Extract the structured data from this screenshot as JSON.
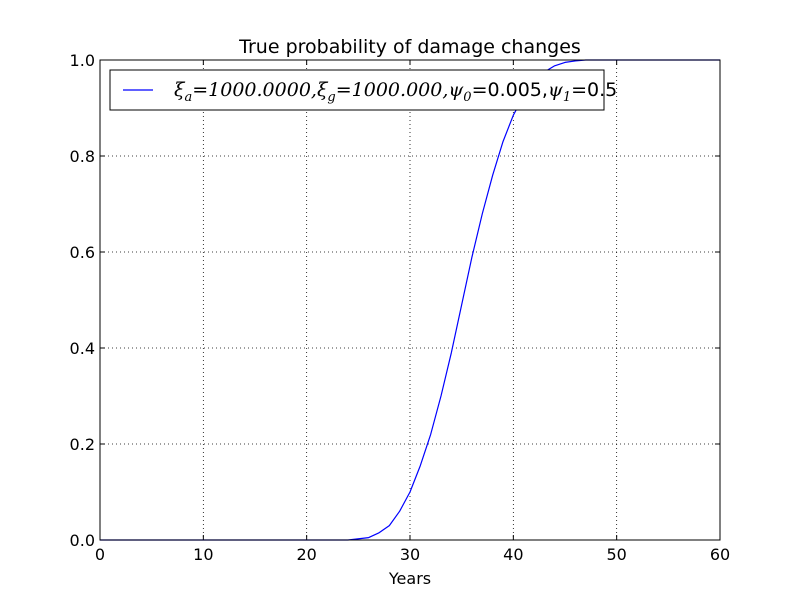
{
  "chart_data": {
    "type": "line",
    "title": "True probability of damage changes",
    "xlabel": "Years",
    "ylabel": "",
    "xlim": [
      0,
      60
    ],
    "ylim": [
      0,
      1
    ],
    "xticks": [
      0,
      10,
      20,
      30,
      40,
      50,
      60
    ],
    "yticks": [
      0.0,
      0.2,
      0.4,
      0.6,
      0.8,
      1.0
    ],
    "xtick_labels": [
      "0",
      "10",
      "20",
      "30",
      "40",
      "50",
      "60"
    ],
    "ytick_labels": [
      "0.0",
      "0.2",
      "0.4",
      "0.6",
      "0.8",
      "1.0"
    ],
    "grid": true,
    "legend_position": "top-left",
    "series": [
      {
        "name": "ξa=1000.0000,ξg=1000.000,ψ0=0.005,ψ1=0.5",
        "color": "#0000ff",
        "x": [
          0,
          5,
          10,
          15,
          20,
          24,
          26,
          27,
          28,
          29,
          30,
          31,
          32,
          33,
          34,
          35,
          36,
          37,
          38,
          39,
          40,
          41,
          42,
          43,
          44,
          45,
          46,
          47,
          48,
          50,
          55,
          60
        ],
        "y": [
          0,
          0,
          0,
          0,
          0,
          0,
          0.005,
          0.015,
          0.03,
          0.06,
          0.1,
          0.155,
          0.22,
          0.3,
          0.39,
          0.49,
          0.59,
          0.68,
          0.76,
          0.83,
          0.885,
          0.925,
          0.955,
          0.975,
          0.988,
          0.995,
          0.998,
          1,
          1,
          1,
          1,
          1
        ]
      }
    ]
  },
  "legend": {
    "segments": [
      {
        "text": "ξ",
        "math": true
      },
      {
        "text": "a",
        "math": true,
        "sub": true
      },
      {
        "text": "=1000.0000,",
        "math": true
      },
      {
        "text": "ξ",
        "math": true
      },
      {
        "text": "g",
        "math": true,
        "sub": true
      },
      {
        "text": "=1000.000,",
        "math": true
      },
      {
        "text": "ψ",
        "math": true
      },
      {
        "text": "0",
        "math": true,
        "sub": true
      },
      {
        "text": "=0.005,",
        "math": false
      },
      {
        "text": "ψ",
        "math": true
      },
      {
        "text": "1",
        "math": true,
        "sub": true
      },
      {
        "text": "=0.5",
        "math": false
      }
    ]
  }
}
